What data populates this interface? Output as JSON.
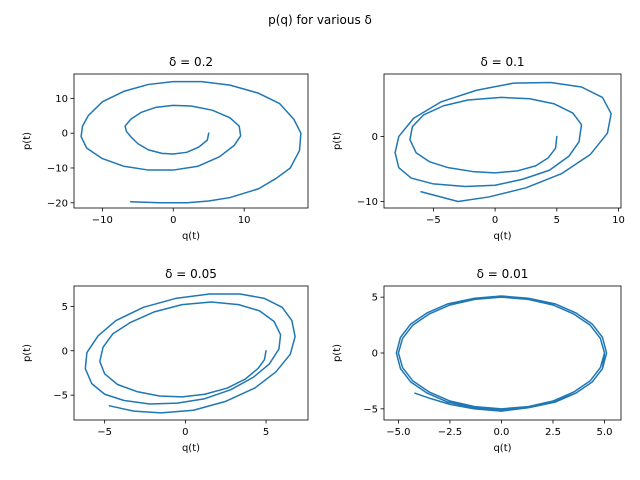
{
  "figure": {
    "suptitle": "p(q) for various δ"
  },
  "chart_data": [
    {
      "type": "line",
      "title": "δ = 0.2",
      "xlabel": "q(t)",
      "ylabel": "p(t)",
      "xlim": [
        -14,
        19
      ],
      "ylim": [
        -21.5,
        17
      ],
      "xticks": [
        -10,
        0,
        10
      ],
      "xtick_labels": [
        "−10",
        "0",
        "10"
      ],
      "yticks": [
        -20,
        -10,
        0,
        10
      ],
      "ytick_labels": [
        "−20",
        "−10",
        "0",
        "10"
      ],
      "color": "#1f77b4",
      "series": [
        {
          "x": [
            5,
            4.8,
            3.6,
            1.9,
            0.0,
            -1.6,
            -3.5,
            -5.0,
            -6.0,
            -6.6,
            -6.8,
            -6.0,
            -4.5,
            -2.5,
            0.0,
            2.5,
            5.5,
            8.0,
            9.3,
            9.5,
            8.6,
            6.5,
            3.5,
            0.0,
            -3.5,
            -7.0,
            -10.0,
            -12.2,
            -13.0,
            -12.8,
            -12.0,
            -10.0,
            -7.0,
            -3.5,
            0.0,
            4.0,
            8.0,
            12.0,
            15.0,
            17.0,
            18.0,
            17.8,
            16.5,
            14.5,
            12.0,
            8.0,
            5.0,
            2.0,
            -2.0,
            -6.0
          ],
          "y": [
            0,
            -2.0,
            -4.0,
            -5.5,
            -6.0,
            -5.8,
            -4.8,
            -3.0,
            -1.0,
            0.5,
            2.0,
            4.0,
            6.0,
            7.4,
            8.0,
            7.8,
            6.6,
            4.4,
            2.0,
            -0.8,
            -3.5,
            -6.8,
            -9.5,
            -10.6,
            -10.6,
            -9.5,
            -7.3,
            -4.3,
            -1.0,
            2.0,
            5.0,
            9.0,
            12.0,
            14.0,
            14.8,
            14.8,
            13.8,
            11.5,
            8.5,
            4.0,
            0.0,
            -5.0,
            -10.0,
            -13.0,
            -16.0,
            -18.5,
            -19.5,
            -20.0,
            -20.0,
            -19.7
          ]
        }
      ]
    },
    {
      "type": "line",
      "title": "δ = 0.1",
      "xlabel": "q(t)",
      "ylabel": "p(t)",
      "xlim": [
        -9.0,
        10.2
      ],
      "ylim": [
        -11.0,
        9.6
      ],
      "xticks": [
        -5,
        0,
        5,
        10
      ],
      "xtick_labels": [
        "−5",
        "0",
        "5",
        "10"
      ],
      "yticks": [
        -10,
        0
      ],
      "ytick_labels": [
        "−10",
        "0"
      ],
      "color": "#1f77b4",
      "series": [
        {
          "x": [
            5,
            4.9,
            4.3,
            3.3,
            1.8,
            0.0,
            -1.8,
            -3.8,
            -5.3,
            -6.4,
            -6.9,
            -6.7,
            -5.8,
            -4.2,
            -2.2,
            0.5,
            2.8,
            4.8,
            6.3,
            7.0,
            6.8,
            6.0,
            4.4,
            2.2,
            0.0,
            -2.4,
            -5.0,
            -6.8,
            -7.8,
            -8.1,
            -7.8,
            -6.6,
            -4.4,
            -1.5,
            1.5,
            4.5,
            7.0,
            8.7,
            9.4,
            9.1,
            7.7,
            5.4,
            2.5,
            -0.5,
            -3.0,
            -6.0
          ],
          "y": [
            0,
            -1.8,
            -3.3,
            -4.5,
            -5.3,
            -5.6,
            -5.4,
            -4.8,
            -3.9,
            -2.5,
            -0.5,
            1.5,
            3.3,
            4.7,
            5.6,
            6.0,
            5.8,
            5.0,
            3.6,
            1.8,
            -0.8,
            -3.0,
            -5.2,
            -6.6,
            -7.5,
            -7.7,
            -7.3,
            -6.4,
            -4.8,
            -2.5,
            0.0,
            2.8,
            5.3,
            7.1,
            8.2,
            8.3,
            7.6,
            6.0,
            3.5,
            0.5,
            -2.8,
            -5.7,
            -7.9,
            -9.3,
            -10.0,
            -8.5
          ]
        }
      ]
    },
    {
      "type": "line",
      "title": "δ = 0.05",
      "xlabel": "q(t)",
      "ylabel": "p(t)",
      "xlim": [
        -6.9,
        7.6
      ],
      "ylim": [
        -7.8,
        7.3
      ],
      "xticks": [
        -5,
        0,
        5
      ],
      "xtick_labels": [
        "−5",
        "0",
        "5"
      ],
      "yticks": [
        -5,
        0,
        5
      ],
      "ytick_labels": [
        "−5",
        "0",
        "5"
      ],
      "color": "#1f77b4",
      "series": [
        {
          "x": [
            5,
            4.9,
            4.5,
            3.7,
            2.6,
            1.2,
            -0.2,
            -1.6,
            -3.0,
            -4.2,
            -5.0,
            -5.3,
            -5.1,
            -4.5,
            -3.4,
            -1.9,
            -0.2,
            1.6,
            3.3,
            4.6,
            5.5,
            5.9,
            5.8,
            5.2,
            4.2,
            2.8,
            1.2,
            -0.5,
            -2.2,
            -3.8,
            -5.0,
            -5.8,
            -6.2,
            -6.1,
            -5.4,
            -4.3,
            -2.6,
            -0.6,
            1.5,
            3.4,
            4.9,
            6.0,
            6.6,
            6.8,
            6.5,
            5.6,
            4.3,
            2.5,
            0.5,
            -1.5,
            -3.2,
            -4.7
          ],
          "y": [
            0,
            -1.0,
            -2.0,
            -3.2,
            -4.2,
            -4.9,
            -5.2,
            -5.1,
            -4.6,
            -3.8,
            -2.6,
            -1.2,
            0.4,
            1.9,
            3.2,
            4.4,
            5.2,
            5.5,
            5.2,
            4.5,
            3.3,
            1.8,
            0.2,
            -1.5,
            -3.0,
            -4.4,
            -5.4,
            -5.9,
            -6.0,
            -5.6,
            -4.9,
            -3.7,
            -2.0,
            -0.2,
            1.7,
            3.4,
            4.9,
            5.9,
            6.4,
            6.4,
            5.9,
            4.9,
            3.4,
            1.6,
            -0.4,
            -2.4,
            -4.2,
            -5.7,
            -6.7,
            -7.0,
            -6.8,
            -6.2
          ]
        }
      ]
    },
    {
      "type": "line",
      "title": "δ = 0.01",
      "xlabel": "q(t)",
      "ylabel": "p(t)",
      "xlim": [
        -5.7,
        5.8
      ],
      "ylim": [
        -6.0,
        6.0
      ],
      "xticks": [
        -5.0,
        -2.5,
        0.0,
        2.5,
        5.0
      ],
      "xtick_labels": [
        "−5.0",
        "−2.5",
        "0.0",
        "2.5",
        "5.0"
      ],
      "yticks": [
        -5,
        0,
        5
      ],
      "ytick_labels": [
        "−5",
        "0",
        "5"
      ],
      "color": "#1f77b4",
      "series": [
        {
          "x": [
            5.0,
            4.8,
            4.3,
            3.5,
            2.5,
            1.3,
            0.0,
            -1.3,
            -2.5,
            -3.5,
            -4.3,
            -4.8,
            -5.0,
            -4.8,
            -4.3,
            -3.5,
            -2.5,
            -1.3,
            0.0,
            1.3,
            2.5,
            3.5,
            4.3,
            4.8,
            5.0,
            4.9,
            4.4,
            3.6,
            2.6,
            1.3,
            0.0,
            -1.3,
            -2.6,
            -3.6,
            -4.4,
            -4.9,
            -5.1,
            -4.9,
            -4.4,
            -3.6,
            -2.6,
            -1.3,
            0.0,
            1.3,
            2.6,
            3.6,
            4.4,
            4.9,
            5.1,
            4.9,
            4.4,
            3.6,
            2.5,
            1.3,
            0.0,
            -1.3,
            -2.5,
            -3.4,
            -4.2
          ],
          "y": [
            0.0,
            -1.3,
            -2.5,
            -3.5,
            -4.3,
            -4.8,
            -5.0,
            -4.8,
            -4.3,
            -3.5,
            -2.5,
            -1.3,
            0.0,
            1.3,
            2.5,
            3.5,
            4.3,
            4.8,
            5.0,
            4.8,
            4.3,
            3.5,
            2.5,
            1.3,
            0.0,
            -1.4,
            -2.6,
            -3.6,
            -4.4,
            -4.9,
            -5.1,
            -4.9,
            -4.4,
            -3.6,
            -2.6,
            -1.4,
            0.0,
            1.4,
            2.6,
            3.6,
            4.4,
            4.9,
            5.1,
            4.9,
            4.4,
            3.6,
            2.6,
            1.4,
            0.0,
            -1.4,
            -2.6,
            -3.6,
            -4.4,
            -4.9,
            -5.2,
            -5.0,
            -4.6,
            -4.1,
            -3.6
          ]
        }
      ]
    }
  ]
}
